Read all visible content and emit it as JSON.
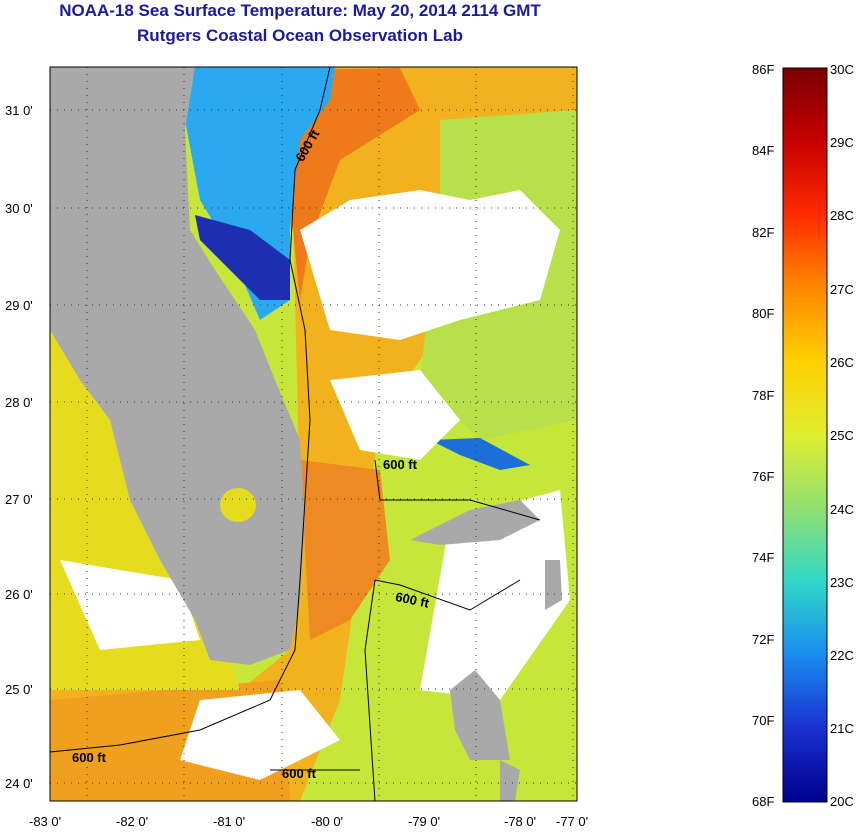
{
  "title": "NOAA-18 Sea Surface Temperature:  May 20, 2014 2114 GMT",
  "subtitle": "Rutgers Coastal Ocean Observation Lab",
  "map": {
    "lat_labels": [
      "31 0'",
      "30 0'",
      "29 0'",
      "28 0'",
      "27 0'",
      "26 0'",
      "25 0'",
      "24 0'"
    ],
    "lon_labels": [
      "-83 0'",
      "-82 0'",
      "-81 0'",
      "-80 0'",
      "-79 0'",
      "-78 0'",
      "-77 0'"
    ],
    "contour_labels": [
      "600 ft",
      "600 ft",
      "600 ft",
      "600 ft",
      "600 ft"
    ],
    "colors": {
      "land": "#a9a9a9",
      "cloud": "#ffffff",
      "frame": "#000000"
    }
  },
  "colorbar": {
    "fahrenheit_labels": [
      "86F",
      "84F",
      "82F",
      "80F",
      "78F",
      "76F",
      "74F",
      "72F",
      "70F",
      "68F"
    ],
    "celsius_labels": [
      "30C",
      "29C",
      "28C",
      "27C",
      "26C",
      "25C",
      "24C",
      "23C",
      "22C",
      "21C",
      "20C"
    ]
  }
}
